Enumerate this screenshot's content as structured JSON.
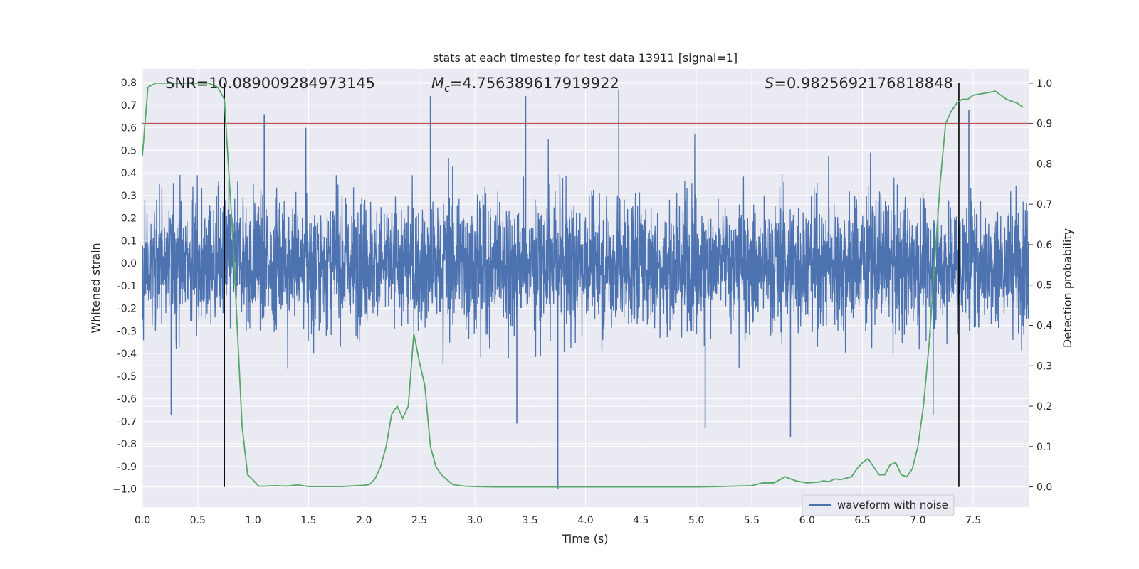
{
  "chart_data": {
    "type": "line",
    "title": "stats at each timestep for test data 13911 [signal=1]",
    "xlabel": "Time (s)",
    "ylabel": "Whitened strain",
    "ylabel_right": "Detection probability",
    "xlim": [
      0.0,
      8.0
    ],
    "ylim": [
      -1.08,
      0.86
    ],
    "ylim_right": [
      -0.05,
      1.035
    ],
    "x_ticks": [
      "0.0",
      "0.5",
      "1.0",
      "1.5",
      "2.0",
      "2.5",
      "3.0",
      "3.5",
      "4.0",
      "4.5",
      "5.0",
      "5.5",
      "6.0",
      "6.5",
      "7.0",
      "7.5"
    ],
    "x_tick_values": [
      0.0,
      0.5,
      1.0,
      1.5,
      2.0,
      2.5,
      3.0,
      3.5,
      4.0,
      4.5,
      5.0,
      5.5,
      6.0,
      6.5,
      7.0,
      7.5
    ],
    "y_ticks": [
      "0.8",
      "0.7",
      "0.6",
      "0.5",
      "0.4",
      "0.3",
      "0.2",
      "0.1",
      "0.0",
      "-0.1",
      "-0.2",
      "-0.3",
      "-0.4",
      "-0.5",
      "-0.6",
      "-0.7",
      "-0.8",
      "-0.9",
      "−1.0"
    ],
    "y_tick_values": [
      0.8,
      0.7,
      0.6,
      0.5,
      0.4,
      0.3,
      0.2,
      0.1,
      0.0,
      -0.1,
      -0.2,
      -0.3,
      -0.4,
      -0.5,
      -0.6,
      -0.7,
      -0.8,
      -0.9,
      -1.0
    ],
    "y_ticks_right": [
      "1.0",
      "0.9",
      "0.8",
      "0.7",
      "0.6",
      "0.5",
      "0.4",
      "0.3",
      "0.2",
      "0.1",
      "0.0"
    ],
    "y_tick_values_right": [
      1.0,
      0.9,
      0.8,
      0.7,
      0.6,
      0.5,
      0.4,
      0.3,
      0.2,
      0.1,
      0.0
    ],
    "annotations": {
      "snr": "SNR=10.089009284973145",
      "mc_symbol": "M",
      "mc_sub": "c",
      "mc_value": "=4.756389617919922",
      "s_symbol": "S",
      "s_value": "=0.9825692176818848"
    },
    "threshold": {
      "value": 0.9,
      "axis": "right",
      "color": "#c44e52"
    },
    "vlines": [
      0.74,
      7.37
    ],
    "legend": {
      "label": "waveform with noise",
      "position": "lower-right",
      "color": "#4c72b0"
    },
    "series": [
      {
        "name": "waveform with noise",
        "axis": "left",
        "color": "#4c72b0",
        "description_duration_s": 8.0,
        "amplitude_range": [
          -1.0,
          0.77
        ],
        "spikes": [
          {
            "x": 2.6,
            "y": 0.74
          },
          {
            "x": 3.46,
            "y": 0.74
          },
          {
            "x": 4.3,
            "y": 0.77
          },
          {
            "x": 1.1,
            "y": 0.66
          },
          {
            "x": 7.46,
            "y": 0.68
          },
          {
            "x": 3.75,
            "y": -1.0
          },
          {
            "x": 0.26,
            "y": -0.67
          },
          {
            "x": 5.08,
            "y": -0.73
          },
          {
            "x": 5.85,
            "y": -0.77
          },
          {
            "x": 3.38,
            "y": -0.71
          }
        ]
      },
      {
        "name": "detection probability",
        "axis": "right",
        "color": "#55a868",
        "x": [
          0.0,
          0.05,
          0.12,
          0.2,
          0.3,
          0.4,
          0.5,
          0.6,
          0.68,
          0.74,
          0.82,
          0.9,
          0.95,
          1.0,
          1.05,
          1.1,
          1.2,
          1.3,
          1.4,
          1.5,
          1.6,
          1.8,
          2.0,
          2.05,
          2.1,
          2.15,
          2.2,
          2.25,
          2.3,
          2.35,
          2.4,
          2.45,
          2.5,
          2.55,
          2.6,
          2.65,
          2.7,
          2.75,
          2.8,
          2.9,
          3.0,
          3.2,
          3.5,
          3.75,
          4.0,
          4.5,
          5.0,
          5.2,
          5.5,
          5.6,
          5.7,
          5.8,
          5.85,
          5.9,
          6.0,
          6.1,
          6.15,
          6.2,
          6.25,
          6.3,
          6.4,
          6.45,
          6.5,
          6.55,
          6.6,
          6.65,
          6.7,
          6.75,
          6.8,
          6.85,
          6.9,
          6.95,
          7.0,
          7.05,
          7.1,
          7.15,
          7.2,
          7.25,
          7.3,
          7.35,
          7.4,
          7.45,
          7.5,
          7.6,
          7.7,
          7.8,
          7.9,
          7.95
        ],
        "y": [
          0.82,
          0.99,
          1.0,
          1.0,
          1.0,
          1.0,
          1.0,
          1.0,
          0.99,
          0.96,
          0.6,
          0.15,
          0.03,
          0.017,
          0.002,
          0.002,
          0.003,
          0.002,
          0.005,
          0.001,
          0.001,
          0.001,
          0.004,
          0.006,
          0.02,
          0.05,
          0.1,
          0.18,
          0.2,
          0.17,
          0.2,
          0.38,
          0.31,
          0.25,
          0.1,
          0.05,
          0.03,
          0.018,
          0.006,
          0.002,
          0.001,
          0.0,
          0.0,
          0.0,
          0.0,
          0.0,
          0.0,
          0.001,
          0.003,
          0.01,
          0.01,
          0.025,
          0.02,
          0.015,
          0.01,
          0.012,
          0.015,
          0.013,
          0.02,
          0.018,
          0.025,
          0.045,
          0.06,
          0.07,
          0.05,
          0.03,
          0.03,
          0.055,
          0.06,
          0.03,
          0.025,
          0.045,
          0.1,
          0.2,
          0.35,
          0.55,
          0.75,
          0.9,
          0.93,
          0.95,
          0.96,
          0.96,
          0.97,
          0.975,
          0.98,
          0.96,
          0.95,
          0.94
        ]
      }
    ]
  }
}
